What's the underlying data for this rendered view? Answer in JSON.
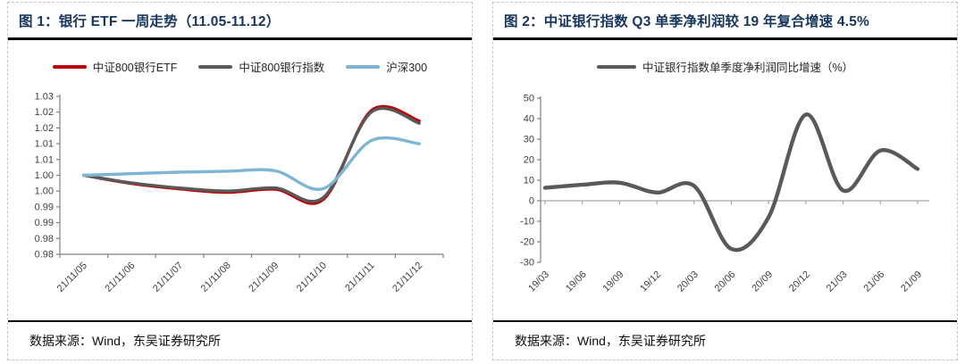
{
  "figure1": {
    "title": "图 1：银行 ETF 一周走势（11.05-11.12）",
    "source": "数据来源：Wind，东吴证券研究所"
  },
  "figure2": {
    "title": "图 2：中证银行指数 Q3 单季净利润较 19 年复合增速 4.5%",
    "source": "数据来源：Wind，东吴证券研究所"
  },
  "colors": {
    "title_navy": "#17365d",
    "divider_black": "#000000",
    "axis_gray": "#808080",
    "zero_line_gray": "#a6a6a6",
    "series_red": "#c00000",
    "series_gray": "#595959",
    "series_blue": "#7eb5d3"
  },
  "chart_data": [
    {
      "type": "line",
      "title": "银行 ETF 一周走势（11.05-11.12）",
      "categories": [
        "21/11/05",
        "21/11/06",
        "21/11/07",
        "21/11/08",
        "21/11/09",
        "21/11/10",
        "21/11/11",
        "21/11/12"
      ],
      "y_tick_labels": [
        "1.03",
        "1.02",
        "1.02",
        "1.01",
        "1.01",
        "1.00",
        "1.00",
        "0.99",
        "0.99",
        "0.98",
        "0.98"
      ],
      "ylim": [
        0.975,
        1.025
      ],
      "grid": false,
      "legend_position": "top",
      "series": [
        {
          "name": "中证800银行ETF",
          "color": "#c00000",
          "values": [
            1.0,
            0.9974,
            0.9957,
            0.9946,
            0.9956,
            0.9924,
            1.0205,
            1.0172
          ]
        },
        {
          "name": "中证800银行指数",
          "color": "#595959",
          "values": [
            1.0,
            0.9976,
            0.996,
            0.995,
            0.996,
            0.993,
            1.02,
            1.0165
          ]
        },
        {
          "name": "沪深300",
          "color": "#7eb5d3",
          "values": [
            1.0,
            1.0005,
            1.001,
            1.0013,
            1.0014,
            0.9958,
            1.011,
            1.01
          ]
        }
      ]
    },
    {
      "type": "line",
      "title": "中证银行指数 Q3 单季净利润较 19 年复合增速 4.5%",
      "categories": [
        "19/03",
        "19/06",
        "19/09",
        "19/12",
        "20/03",
        "20/06",
        "20/09",
        "20/12",
        "21/03",
        "21/06",
        "21/09"
      ],
      "y_ticks": [
        50,
        40,
        30,
        20,
        10,
        0,
        -10,
        -20,
        -30
      ],
      "ylim": [
        -30,
        50
      ],
      "zero_line": true,
      "grid": false,
      "legend_position": "top",
      "series": [
        {
          "name": "中证银行指数单季度净利润同比增速（%）",
          "color": "#595959",
          "values": [
            6.3,
            7.8,
            8.8,
            4.0,
            7.2,
            -23.5,
            -8.0,
            42.0,
            5.0,
            24.5,
            15.5
          ]
        }
      ]
    }
  ]
}
